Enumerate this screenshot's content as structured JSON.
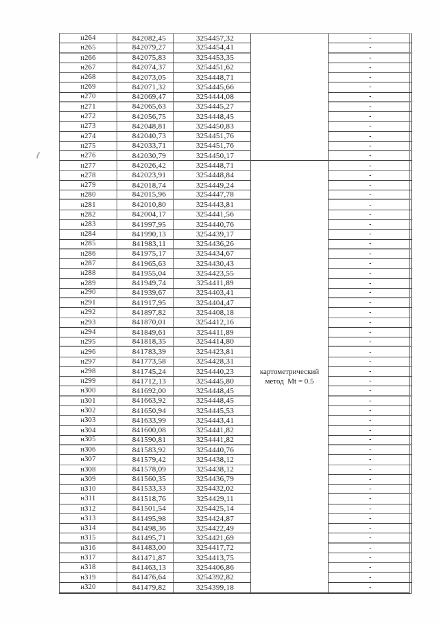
{
  "colors": {
    "paper": "#fefefe",
    "ink": "#1c1c1c",
    "grid_dark": "#3e3e3e",
    "grid_light": "#8f8f8f"
  },
  "table": {
    "method_cell": {
      "line1": "картометрический",
      "line2": "метод  Мt = 0.5",
      "spans_from_row": "н277",
      "spans_to_row": "н320"
    },
    "note_placeholder": "-",
    "rows": [
      {
        "id": "н264",
        "x": "842082,45",
        "y": "3254457,32",
        "note": "-"
      },
      {
        "id": "н265",
        "x": "842079,27",
        "y": "3254454,41",
        "note": "-"
      },
      {
        "id": "н266",
        "x": "842075,83",
        "y": "3254453,35",
        "note": "-"
      },
      {
        "id": "н267",
        "x": "842074,37",
        "y": "3254451,62",
        "note": "-"
      },
      {
        "id": "н268",
        "x": "842073,05",
        "y": "3254448,71",
        "note": "-"
      },
      {
        "id": "н269",
        "x": "842071,32",
        "y": "3254445,66",
        "note": "-"
      },
      {
        "id": "н270",
        "x": "842069,47",
        "y": "3254444,08",
        "note": "-"
      },
      {
        "id": "н271",
        "x": "842065,63",
        "y": "3254445,27",
        "note": "-"
      },
      {
        "id": "н272",
        "x": "842056,75",
        "y": "3254448,45",
        "note": "-"
      },
      {
        "id": "н273",
        "x": "842048,81",
        "y": "3254450,83",
        "note": "-"
      },
      {
        "id": "н274",
        "x": "842040,73",
        "y": "3254451,76",
        "note": "-"
      },
      {
        "id": "н275",
        "x": "842033,71",
        "y": "3254451,76",
        "note": "-"
      },
      {
        "id": "н276",
        "x": "842030,79",
        "y": "3254450,17",
        "note": "-"
      },
      {
        "id": "н277",
        "x": "842026,42",
        "y": "3254448,71",
        "note": "-"
      },
      {
        "id": "н278",
        "x": "842023,91",
        "y": "3254448,84",
        "note": "-"
      },
      {
        "id": "н279",
        "x": "842018,74",
        "y": "3254449,24",
        "note": "-"
      },
      {
        "id": "н280",
        "x": "842015,96",
        "y": "3254447,78",
        "note": "-"
      },
      {
        "id": "н281",
        "x": "842010,80",
        "y": "3254443,81",
        "note": "-"
      },
      {
        "id": "н282",
        "x": "842004,17",
        "y": "3254441,56",
        "note": "-"
      },
      {
        "id": "н283",
        "x": "841997,95",
        "y": "3254440,76",
        "note": "-"
      },
      {
        "id": "н284",
        "x": "841990,13",
        "y": "3254439,17",
        "note": "-"
      },
      {
        "id": "н285",
        "x": "841983,11",
        "y": "3254436,26",
        "note": "-"
      },
      {
        "id": "н286",
        "x": "841975,17",
        "y": "3254434,67",
        "note": "-"
      },
      {
        "id": "н287",
        "x": "841965,63",
        "y": "3254430,43",
        "note": "-"
      },
      {
        "id": "н288",
        "x": "841955,04",
        "y": "3254423,55",
        "note": "-"
      },
      {
        "id": "н289",
        "x": "841949,74",
        "y": "3254411,89",
        "note": "-"
      },
      {
        "id": "н290",
        "x": "841939,67",
        "y": "3254403,41",
        "note": "-"
      },
      {
        "id": "н291",
        "x": "841917,95",
        "y": "3254404,47",
        "note": "-"
      },
      {
        "id": "н292",
        "x": "841897,82",
        "y": "3254408,18",
        "note": "-"
      },
      {
        "id": "н293",
        "x": "841870,01",
        "y": "3254412,16",
        "note": "-"
      },
      {
        "id": "н294",
        "x": "841849,61",
        "y": "3254411,89",
        "note": "-"
      },
      {
        "id": "н295",
        "x": "841818,35",
        "y": "3254414,80",
        "note": "-"
      },
      {
        "id": "н296",
        "x": "841783,39",
        "y": "3254423,81",
        "note": "-"
      },
      {
        "id": "н297",
        "x": "841773,58",
        "y": "3254428,31",
        "note": "-"
      },
      {
        "id": "н298",
        "x": "841745,24",
        "y": "3254440,23",
        "note": "-"
      },
      {
        "id": "н299",
        "x": "841712,13",
        "y": "3254445,80",
        "note": "-"
      },
      {
        "id": "н300",
        "x": "841692,00",
        "y": "3254448,45",
        "note": "-"
      },
      {
        "id": "н301",
        "x": "841663,92",
        "y": "3254448,45",
        "note": "-"
      },
      {
        "id": "н302",
        "x": "841650,94",
        "y": "3254445,53",
        "note": "-"
      },
      {
        "id": "н303",
        "x": "841633,99",
        "y": "3254443,41",
        "note": "-"
      },
      {
        "id": "н304",
        "x": "841600,08",
        "y": "3254441,82",
        "note": "-"
      },
      {
        "id": "н305",
        "x": "841590,81",
        "y": "3254441,82",
        "note": "-"
      },
      {
        "id": "н306",
        "x": "841583,92",
        "y": "3254440,76",
        "note": "-"
      },
      {
        "id": "н307",
        "x": "841579,42",
        "y": "3254438,12",
        "note": "-"
      },
      {
        "id": "н308",
        "x": "841578,09",
        "y": "3254438,12",
        "note": "-"
      },
      {
        "id": "н309",
        "x": "841560,35",
        "y": "3254436,79",
        "note": "-"
      },
      {
        "id": "н310",
        "x": "841533,33",
        "y": "3254432,02",
        "note": "-"
      },
      {
        "id": "н311",
        "x": "841518,76",
        "y": "3254429,11",
        "note": "-"
      },
      {
        "id": "н312",
        "x": "841501,54",
        "y": "3254425,14",
        "note": "-"
      },
      {
        "id": "н313",
        "x": "841495,98",
        "y": "3254424,87",
        "note": "-"
      },
      {
        "id": "н314",
        "x": "841498,36",
        "y": "3254422,49",
        "note": "-"
      },
      {
        "id": "н315",
        "x": "841495,71",
        "y": "3254421,69",
        "note": "-"
      },
      {
        "id": "н316",
        "x": "841483,00",
        "y": "3254417,72",
        "note": "-"
      },
      {
        "id": "н317",
        "x": "841471,87",
        "y": "3254413,75",
        "note": "-"
      },
      {
        "id": "н318",
        "x": "841463,13",
        "y": "3254406,86",
        "note": "-"
      },
      {
        "id": "н319",
        "x": "841476,64",
        "y": "3254392,82",
        "note": "-"
      },
      {
        "id": "н320",
        "x": "841479,82",
        "y": "3254399,18",
        "note": "-"
      }
    ]
  }
}
